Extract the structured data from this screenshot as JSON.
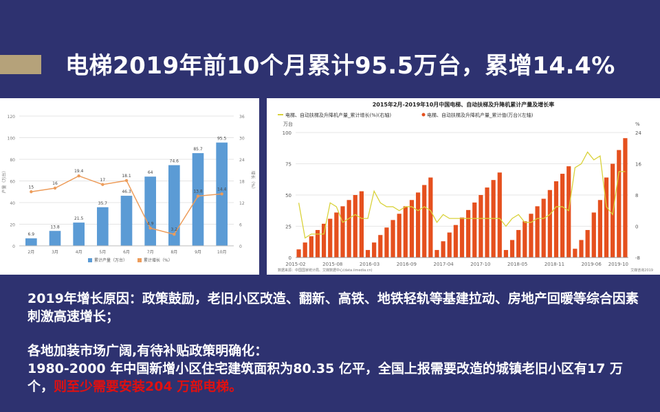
{
  "title": "电梯2019年前10个月累计95.5万台，累增14.4%",
  "colors": {
    "background": "#2e3270",
    "accent": "#b5a27a",
    "bar_blue": "#5b9bd5",
    "line_orange": "#ed9c5a",
    "bar_red": "#e5501e",
    "line_yellow": "#d9d23a",
    "highlight_red": "#e01010"
  },
  "chart_data": [
    {
      "type": "bar",
      "categories": [
        "2月",
        "3月",
        "4月",
        "5月",
        "6月",
        "7月",
        "8月",
        "9月",
        "10月"
      ],
      "series": [
        {
          "name": "累计产量（万台）",
          "type": "bar",
          "axis": "left",
          "values": [
            6.9,
            13.8,
            21.5,
            35.7,
            46.3,
            64,
            74.6,
            85.7,
            95.5
          ]
        },
        {
          "name": "累计增长（%）",
          "type": "line",
          "axis": "right",
          "values": [
            15,
            16,
            19.4,
            17,
            18.1,
            4.9,
            3.2,
            13.8,
            14.4
          ]
        }
      ],
      "yticks_left": [
        "0",
        "20",
        "40",
        "60",
        "80",
        "100",
        "120"
      ],
      "yticks_right": [
        "0",
        "6",
        "12",
        "18",
        "24",
        "30",
        "36"
      ],
      "ylim_left": [
        0,
        120
      ],
      "ylim_right": [
        0,
        36
      ],
      "ylabel_left": "产量（万台）",
      "ylabel_right": "增长（%）",
      "legend_position": "bottom"
    },
    {
      "type": "bar",
      "title": "2015年2月-2019年10月中国电梯、自动扶梯及升降机累计产量及增长率",
      "legend": [
        "电梯、自动扶梯及升降机产量_累计增长(%)(右轴)",
        "电梯、自动扶梯及升降机产量_累计值(万台)(左轴)"
      ],
      "left_unit": "万台",
      "right_unit": "%",
      "yticks_left": [
        "0",
        "25",
        "50",
        "75",
        "100"
      ],
      "yticks_right": [
        "-8",
        "0",
        "8",
        "16",
        "24"
      ],
      "ylim_left": [
        0,
        100
      ],
      "ylim_right": [
        -8,
        24
      ],
      "xticks": [
        "2015-02",
        "2015-08",
        "2016-03",
        "2016-09",
        "2017-04",
        "2017-10",
        "2018-05",
        "2018-11",
        "2019-06",
        "2019-10"
      ],
      "years": [
        {
          "year": 2015,
          "bars": [
            6.5,
            12,
            17,
            22,
            27,
            31,
            36,
            41,
            46,
            50,
            53
          ],
          "growth": [
            6,
            -3,
            -2,
            -2,
            -2,
            6,
            5,
            1,
            2,
            3,
            2
          ]
        },
        {
          "year": 2016,
          "bars": [
            6,
            12,
            18,
            24,
            30,
            35,
            41,
            46,
            52,
            58,
            64
          ],
          "growth": [
            2,
            9,
            6,
            5,
            5,
            4,
            5,
            5,
            4,
            5,
            4
          ]
        },
        {
          "year": 2017,
          "bars": [
            6,
            13,
            20,
            26,
            32,
            38,
            44,
            50,
            56,
            62,
            68
          ],
          "growth": [
            1,
            3,
            2,
            2,
            2,
            2,
            2,
            2,
            2,
            2,
            2
          ]
        },
        {
          "year": 2018,
          "bars": [
            6,
            14,
            22,
            29,
            35,
            41,
            47,
            54,
            61,
            67,
            73
          ],
          "growth": [
            0,
            2,
            3,
            1,
            1,
            2,
            2,
            3,
            5,
            5,
            4
          ]
        },
        {
          "year": 2019,
          "bars": [
            7,
            14,
            22,
            36,
            46,
            64,
            75,
            86,
            95.5
          ],
          "growth": [
            15,
            16,
            19,
            17,
            18,
            5,
            3,
            14,
            14
          ]
        }
      ],
      "source": "数据来源：中国国家统计局、艾媒数据中心(data.iimedia.cn)",
      "watermark": "艾媒咨询2019",
      "legend_position": "top"
    }
  ],
  "text": {
    "para1": "2019年增长原因：政策鼓励，老旧小区改造、翻新、高铁、地铁轻轨等基建拉动、房地产回暖等综合因素刺激高速增长；",
    "para2_line1": "各地加装市场广阔,有待补贴政策明确化：",
    "para2_line2": "1980-2000 年中国新增小区住宅建筑面积为80.35 亿平，全国上报需要改造的城镇老旧小区有17 万个，",
    "para2_red": "则至少需要安装204 万部电梯。"
  }
}
